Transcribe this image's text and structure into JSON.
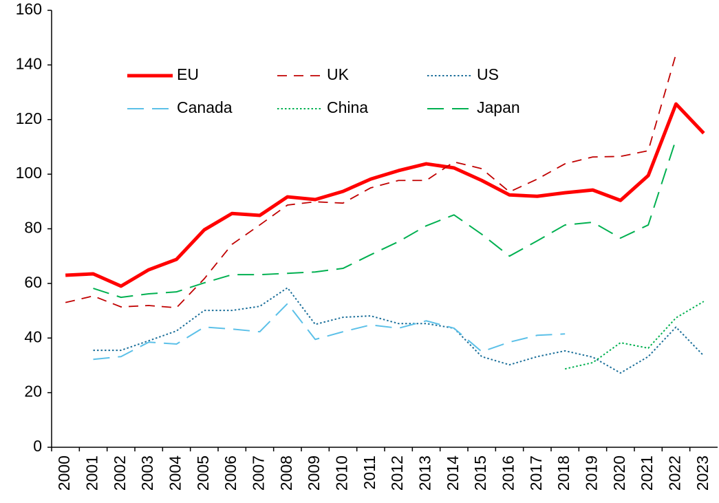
{
  "chart_data": {
    "type": "line",
    "categories": [
      "2000",
      "2001",
      "2002",
      "2003",
      "2004",
      "2005",
      "2006",
      "2007",
      "2008",
      "2009",
      "2010",
      "2011",
      "2012",
      "2013",
      "2014",
      "2015",
      "2016",
      "2017",
      "2018",
      "2019",
      "2020",
      "2021",
      "2022",
      "2023"
    ],
    "series": [
      {
        "name": "EU",
        "color": "#ff0000",
        "style": "solid",
        "values": [
          63,
          63.5,
          59,
          65,
          68.8,
          79.6,
          85.6,
          84.9,
          91.7,
          90.7,
          93.7,
          98.2,
          101.3,
          103.8,
          102.3,
          97.7,
          92.4,
          91.9,
          93.2,
          94.2,
          90.4,
          99.5,
          125.7,
          115
        ]
      },
      {
        "name": "UK",
        "color": "#c00000",
        "style": "dashed",
        "values": [
          53,
          55.4,
          51.4,
          51.9,
          51.1,
          61.7,
          74.3,
          81.4,
          88.7,
          89.9,
          89.4,
          95,
          97.7,
          97.7,
          104.5,
          102,
          93.5,
          98.2,
          103.8,
          106.3,
          106.5,
          108.6,
          144,
          null
        ]
      },
      {
        "name": "US",
        "color": "#1a6e99",
        "style": "dotted",
        "values": [
          null,
          35.5,
          35.5,
          39,
          42.6,
          50.1,
          50.1,
          51.6,
          58.4,
          45,
          47.6,
          48.1,
          45.3,
          45.3,
          43.6,
          33.2,
          30.2,
          33.2,
          35.3,
          33,
          27.2,
          33.2,
          44,
          33.5
        ]
      },
      {
        "name": "Canada",
        "color": "#5bc0e8",
        "style": "longdash",
        "values": [
          null,
          32.2,
          33.2,
          38.5,
          37.8,
          44,
          43.3,
          42.3,
          52.6,
          39.5,
          42.3,
          44.8,
          43.6,
          46.3,
          43.6,
          35,
          38.5,
          41,
          41.5,
          null,
          null,
          null,
          null,
          null
        ]
      },
      {
        "name": "China",
        "color": "#00b050",
        "style": "dotted",
        "values": [
          null,
          null,
          null,
          null,
          null,
          null,
          null,
          null,
          null,
          null,
          null,
          null,
          null,
          null,
          null,
          null,
          null,
          null,
          28.7,
          31,
          38.3,
          36.3,
          47.4,
          53.4
        ]
      },
      {
        "name": "Japan",
        "color": "#00b050",
        "style": "longdash",
        "values": [
          null,
          58.2,
          54.9,
          56.2,
          56.9,
          60.2,
          63.2,
          63.2,
          63.7,
          64.2,
          65.5,
          70.5,
          75.3,
          81.1,
          85.1,
          78,
          70,
          75.6,
          81.4,
          82.4,
          76.6,
          81.4,
          112.8,
          null
        ]
      }
    ],
    "ylim": [
      0,
      160
    ],
    "yticks": [
      0,
      20,
      40,
      60,
      80,
      100,
      120,
      140,
      160
    ],
    "legend": "upper-left"
  }
}
